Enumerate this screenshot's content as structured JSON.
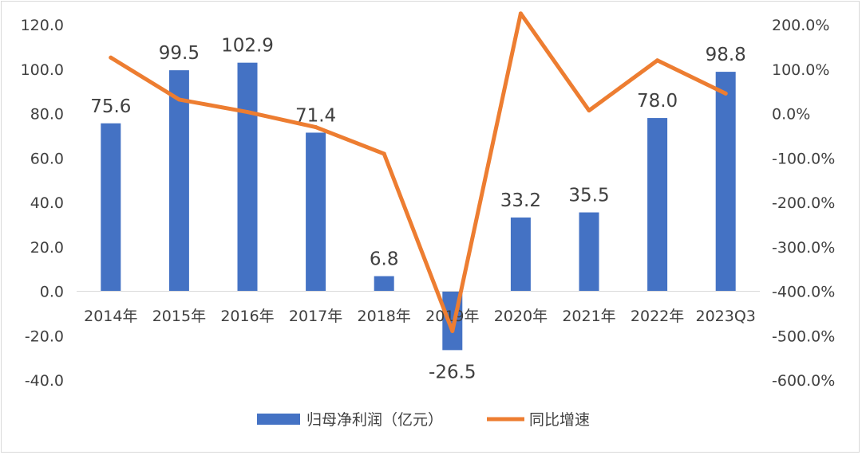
{
  "chart_data": {
    "type": "bar",
    "categories": [
      "2014年",
      "2015年",
      "2016年",
      "2017年",
      "2018年",
      "2019年",
      "2020年",
      "2021年",
      "2022年",
      "2023Q3"
    ],
    "series": [
      {
        "name": "归母净利润（亿元）",
        "type": "bar",
        "axis": "left",
        "values": [
          75.6,
          99.5,
          102.9,
          71.4,
          6.8,
          -26.5,
          33.2,
          35.5,
          78.0,
          98.8
        ],
        "labels": [
          "75.6",
          "99.5",
          "102.9",
          "71.4",
          "6.8",
          "-26.5",
          "33.2",
          "35.5",
          "78.0",
          "98.8"
        ],
        "color": "#4472c4"
      },
      {
        "name": "同比增速",
        "type": "line",
        "axis": "right",
        "values": [
          126,
          31.6,
          3.4,
          -30.6,
          -90.5,
          -489.7,
          225.3,
          6.9,
          119.7,
          45
        ],
        "color": "#ed7d31"
      }
    ],
    "ylim_left": [
      -40,
      120
    ],
    "yticks_left": [
      "-40.0",
      "-20.0",
      "0.0",
      "20.0",
      "40.0",
      "60.0",
      "80.0",
      "100.0",
      "120.0"
    ],
    "ylim_right": [
      -600,
      200
    ],
    "yticks_right": [
      "-600.0%",
      "-500.0%",
      "-400.0%",
      "-300.0%",
      "-200.0%",
      "-100.0%",
      "0.0%",
      "100.0%",
      "200.0%"
    ],
    "grid": false,
    "legend": "bottom"
  }
}
